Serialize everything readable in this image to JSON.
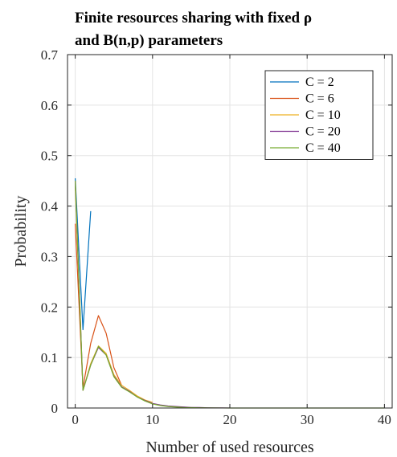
{
  "chart_data": {
    "type": "line",
    "title": [
      "Finite resources sharing with fixed ρ",
      "and B(n,p) parameters"
    ],
    "xlabel": "Number of used resources",
    "ylabel": "Probability",
    "xlim": [
      -1,
      41
    ],
    "ylim": [
      0,
      0.7
    ],
    "xticks": [
      0,
      10,
      20,
      30,
      40
    ],
    "yticks": [
      0,
      0.1,
      0.2,
      0.3,
      0.4,
      0.5,
      0.6,
      0.7
    ],
    "xtick_labels": [
      "0",
      "10",
      "20",
      "30",
      "40"
    ],
    "ytick_labels": [
      "0",
      "0.1",
      "0.2",
      "0.3",
      "0.4",
      "0.5",
      "0.6",
      "0.7"
    ],
    "grid": true,
    "legend_position": "top-right",
    "series": [
      {
        "name": "C = 2",
        "color": "#0072BD",
        "x": [
          0,
          1,
          2
        ],
        "y": [
          0.455,
          0.155,
          0.39
        ]
      },
      {
        "name": "C = 6",
        "color": "#D95319",
        "x": [
          0,
          1,
          2,
          3,
          4,
          5,
          6
        ],
        "y": [
          0.365,
          0.04,
          0.128,
          0.183,
          0.148,
          0.08,
          0.045
        ]
      },
      {
        "name": "C = 10",
        "color": "#EDB120",
        "x": [
          0,
          1,
          2,
          3,
          4,
          5,
          6,
          7,
          8,
          9,
          10
        ],
        "y": [
          0.44,
          0.035,
          0.088,
          0.123,
          0.108,
          0.066,
          0.045,
          0.035,
          0.024,
          0.016,
          0.011
        ]
      },
      {
        "name": "C = 20",
        "color": "#7E2F8E",
        "x": [
          0,
          1,
          2,
          3,
          4,
          5,
          6,
          7,
          8,
          9,
          10,
          11,
          12,
          13,
          14,
          15,
          16,
          17,
          18,
          19,
          20
        ],
        "y": [
          0.45,
          0.035,
          0.085,
          0.12,
          0.105,
          0.063,
          0.042,
          0.033,
          0.022,
          0.015,
          0.009,
          0.006,
          0.004,
          0.003,
          0.002,
          0.001,
          0.001,
          0.0005,
          0.0003,
          0.0002,
          0.0001
        ]
      },
      {
        "name": "C = 40",
        "color": "#77AC30",
        "x": [
          0,
          1,
          2,
          3,
          4,
          5,
          6,
          7,
          8,
          9,
          10,
          11,
          12,
          13,
          14,
          15,
          16,
          17,
          18,
          19,
          20,
          21,
          22,
          23,
          24,
          25,
          26,
          27,
          28,
          29,
          30,
          31,
          32,
          33,
          34,
          35,
          36,
          37,
          38,
          39,
          40
        ],
        "y": [
          0.45,
          0.035,
          0.085,
          0.122,
          0.105,
          0.062,
          0.041,
          0.032,
          0.022,
          0.014,
          0.008,
          0.005,
          0.003,
          0.002,
          0.001,
          0.0008,
          0.0005,
          0.0003,
          0.0002,
          0.0001,
          0,
          0,
          0,
          0,
          0,
          0,
          0,
          0,
          0,
          0,
          0,
          0,
          0,
          0,
          0,
          0,
          0,
          0,
          0,
          0,
          0
        ]
      }
    ]
  }
}
